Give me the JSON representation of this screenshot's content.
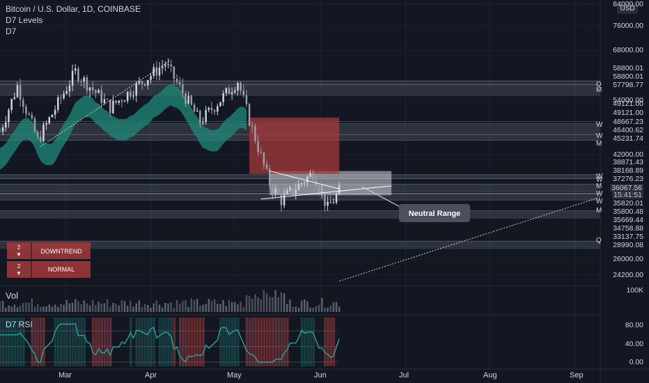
{
  "header": {
    "title": "Bitcoin / U.S. Dollar, 1D, COINBASE",
    "line2": "D7 Levels",
    "line3": "D7"
  },
  "price_axis": {
    "currency_badge": "USD",
    "ticks": [
      "84000.00",
      "76000.00",
      "68000.00",
      "54000.00",
      "42000.00",
      "26000.00",
      "24200.00"
    ],
    "level_labels": [
      "58800.01",
      "58800.01",
      "57798.77",
      "49121.00",
      "49121.00",
      "48667.23",
      "46400.62",
      "45231.74",
      "38871.43",
      "38168.89",
      "37276.23",
      "36067.56",
      "15:41:51",
      "35820.01",
      "35800.48",
      "35669.44",
      "34758.88",
      "33137.75",
      "28990.08"
    ],
    "level_tags": [
      "Q",
      "M",
      "W",
      "W",
      "M",
      "W",
      "W",
      "M",
      "W",
      "W",
      "M",
      "Q"
    ]
  },
  "legend_boxes": [
    {
      "count": "2",
      "label": "DOWNTREND"
    },
    {
      "count": "2",
      "label": "NORMAL"
    }
  ],
  "annotation": {
    "label": "Neutral Range"
  },
  "volume_pane": {
    "title": "Vol",
    "axis_label": "100K"
  },
  "rsi_pane": {
    "title": "D7 RSI",
    "ticks": [
      "80.00",
      "40.00",
      "0.00"
    ]
  },
  "time_axis": {
    "labels": [
      "Mar",
      "Apr",
      "May",
      "Jun",
      "Jul",
      "Aug",
      "Sep"
    ]
  },
  "colors": {
    "background": "#131722",
    "up": "#26a69a",
    "down": "#ef5350",
    "cloud_up": "#1f8a7a",
    "cloud_down": "#a63a3a",
    "level_band": "#5d6675"
  },
  "chart_data": {
    "type": "candlestick",
    "symbol": "Bitcoin / U.S. Dollar",
    "interval": "1D",
    "exchange": "COINBASE",
    "y_scale": "log",
    "ylim": [
      24200,
      84000
    ],
    "x_range": [
      "2021-02-15",
      "2021-09-10"
    ],
    "x_ticks": [
      "Mar",
      "Apr",
      "May",
      "Jun",
      "Jul",
      "Aug",
      "Sep"
    ],
    "close_series_approx": [
      {
        "date": "2021-02-15",
        "close": 47000
      },
      {
        "date": "2021-02-21",
        "close": 57500
      },
      {
        "date": "2021-02-28",
        "close": 45200
      },
      {
        "date": "2021-03-13",
        "close": 61200
      },
      {
        "date": "2021-03-25",
        "close": 52300
      },
      {
        "date": "2021-04-13",
        "close": 63500
      },
      {
        "date": "2021-04-25",
        "close": 49100
      },
      {
        "date": "2021-05-08",
        "close": 58800
      },
      {
        "date": "2021-05-12",
        "close": 49500
      },
      {
        "date": "2021-05-19",
        "close": 37300
      },
      {
        "date": "2021-05-23",
        "close": 34700
      },
      {
        "date": "2021-06-03",
        "close": 39200
      },
      {
        "date": "2021-06-08",
        "close": 33500
      },
      {
        "date": "2021-06-12",
        "close": 36067
      }
    ],
    "levels": [
      58800.01,
      57798.77,
      49121.0,
      48667.23,
      46400.62,
      45231.74,
      38871.43,
      38168.89,
      37276.23,
      36067.56,
      35820.01,
      35800.48,
      35669.44,
      34758.88,
      33137.75,
      28990.08
    ],
    "annotations": [
      "Neutral Range"
    ],
    "indicators": [
      {
        "name": "Vol",
        "axis": [
          "100K"
        ]
      },
      {
        "name": "D7 RSI",
        "ylim": [
          0,
          100
        ],
        "ticks": [
          0,
          40,
          80
        ]
      }
    ]
  }
}
